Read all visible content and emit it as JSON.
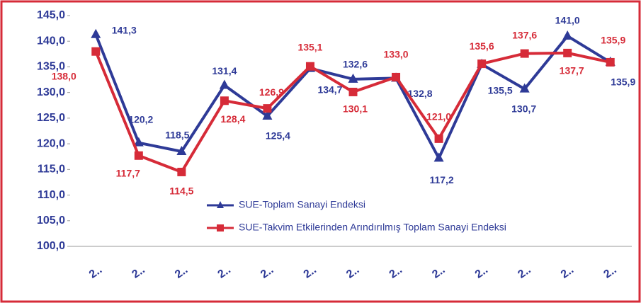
{
  "chart_data": {
    "type": "line",
    "categories": [
      "2..",
      "2..",
      "2..",
      "2..",
      "2..",
      "2..",
      "2..",
      "2..",
      "2..",
      "2..",
      "2..",
      "2..",
      "2.."
    ],
    "series": [
      {
        "name": "SUE-Toplam Sanayi Endeksi",
        "color": "#2e3a97",
        "marker": "triangle",
        "values": [
          141.3,
          120.2,
          118.5,
          131.4,
          125.4,
          134.7,
          132.6,
          132.8,
          117.2,
          135.5,
          130.7,
          141.0,
          135.9
        ],
        "value_labels": [
          "141,3",
          "120,2",
          "118,5",
          "131,4",
          "125,4",
          "134,7",
          "132,6",
          "132,8",
          "117,2",
          "135,5",
          "130,7",
          "141,0",
          "135,9"
        ]
      },
      {
        "name": "SUE-Takvim Etkilerinden Arındırılmış Toplam Sanayi Endeksi",
        "color": "#d62b38",
        "marker": "square",
        "values": [
          138.0,
          117.7,
          114.5,
          128.4,
          126.9,
          135.1,
          130.1,
          133.0,
          121.0,
          135.6,
          137.6,
          137.7,
          135.9
        ],
        "value_labels": [
          "138,0",
          "117,7",
          "114,5",
          "128,4",
          "126,9",
          "135,1",
          "130,1",
          "133,0",
          "121,0",
          "135,6",
          "137,6",
          "137,7",
          "135,9"
        ]
      }
    ],
    "ylim": [
      100,
      145
    ],
    "yticks": [
      {
        "value": 100,
        "label": "100,0"
      },
      {
        "value": 105,
        "label": "105,0"
      },
      {
        "value": 110,
        "label": "110,0"
      },
      {
        "value": 115,
        "label": "115,0"
      },
      {
        "value": 120,
        "label": "120,0"
      },
      {
        "value": 125,
        "label": "125,0"
      },
      {
        "value": 130,
        "label": "130,0"
      },
      {
        "value": 135,
        "label": "135,0"
      },
      {
        "value": 140,
        "label": "140,0"
      },
      {
        "value": 145,
        "label": "145,0"
      }
    ],
    "grid": false
  }
}
